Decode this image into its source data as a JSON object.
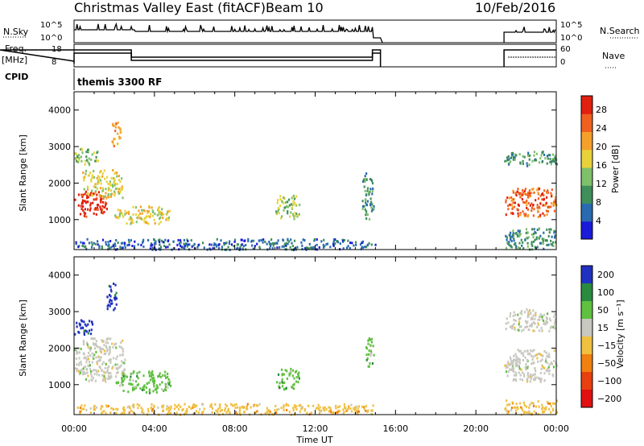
{
  "header": {
    "title": "Christmas Valley East (fitACF)",
    "beam": "Beam 10",
    "date": "10/Feb/2016"
  },
  "strip_labels": {
    "nsky": "N.Sky",
    "freq": "Freq.",
    "mhz": "[MHz]",
    "cpid": "CPID",
    "nsearch": "N.Search",
    "nave": "Nave",
    "nsky_ticks": [
      "10^5",
      "10^0"
    ],
    "nsearch_ticks": [
      "10^5",
      "10^0"
    ],
    "freq_ticks": [
      "18",
      "8"
    ],
    "nave_ticks": [
      "60",
      "0"
    ],
    "cpid_text": "themis 3300 RF"
  },
  "colors": {
    "trace": "#000000",
    "grid_dots": "#000000"
  },
  "chart_data": [
    {
      "type": "heatmap",
      "name": "power",
      "ylabel": "Slant Range [km]",
      "xlim_hours": [
        0,
        24
      ],
      "ylim_km": [
        180,
        4500
      ],
      "yticks": [
        1000,
        2000,
        3000,
        4000
      ],
      "colorbar": {
        "label": "Power [dB]",
        "ticks": [
          4,
          8,
          12,
          16,
          20,
          24,
          28
        ],
        "range": [
          0,
          31
        ],
        "colors": [
          "#1a1ad9",
          "#2a6ab0",
          "#3f8f5a",
          "#7fc06a",
          "#e8d23a",
          "#f5a02a",
          "#f06020",
          "#e02010"
        ]
      },
      "blobs": [
        {
          "t0": 0.0,
          "t1": 1.6,
          "r0": 1100,
          "r1": 1800,
          "level": 28
        },
        {
          "t0": 0.4,
          "t1": 2.4,
          "r0": 1600,
          "r1": 2400,
          "level": 16
        },
        {
          "t0": 0.0,
          "t1": 1.2,
          "r0": 2500,
          "r1": 3000,
          "level": 14
        },
        {
          "t0": 1.8,
          "t1": 2.3,
          "r0": 3000,
          "r1": 3700,
          "level": 20
        },
        {
          "t0": 2.0,
          "t1": 4.8,
          "r0": 900,
          "r1": 1400,
          "level": 16
        },
        {
          "t0": 10.0,
          "t1": 11.2,
          "r0": 1000,
          "r1": 1700,
          "level": 12
        },
        {
          "t0": 14.3,
          "t1": 14.9,
          "r0": 1000,
          "r1": 2300,
          "level": 10
        },
        {
          "t0": 0.0,
          "t1": 15.0,
          "r0": 200,
          "r1": 500,
          "level": 6
        },
        {
          "t0": 21.4,
          "t1": 24.0,
          "r0": 1100,
          "r1": 1900,
          "level": 24
        },
        {
          "t0": 21.4,
          "t1": 24.0,
          "r0": 2500,
          "r1": 2900,
          "level": 8
        },
        {
          "t0": 21.4,
          "t1": 24.0,
          "r0": 200,
          "r1": 800,
          "level": 10
        }
      ]
    },
    {
      "type": "heatmap",
      "name": "velocity",
      "ylabel": "Slant Range [km]",
      "xlabel": "Time UT",
      "xlim_hours": [
        0,
        24
      ],
      "ylim_km": [
        180,
        4500
      ],
      "yticks": [
        1000,
        2000,
        3000,
        4000
      ],
      "xtick_labels": [
        "00:00",
        "04:00",
        "08:00",
        "12:00",
        "16:00",
        "20:00",
        "00:00"
      ],
      "colorbar": {
        "label": "Velocity [m s⁻¹]",
        "ticks": [
          "200",
          "100",
          "50",
          "15",
          "−15",
          "−50",
          "−100",
          "−200"
        ],
        "colors": [
          "#2030c0",
          "#2a8a40",
          "#60c040",
          "#c8c8c0",
          "#f0c040",
          "#f08010",
          "#e84010",
          "#e01010"
        ]
      },
      "blobs": [
        {
          "t0": 0.0,
          "t1": 2.5,
          "r0": 1100,
          "r1": 2300,
          "class": "gray"
        },
        {
          "t0": 1.6,
          "t1": 2.1,
          "r0": 3000,
          "r1": 3800,
          "class": "blue"
        },
        {
          "t0": 0.0,
          "t1": 1.0,
          "r0": 2400,
          "r1": 2800,
          "class": "blue"
        },
        {
          "t0": 2.0,
          "t1": 4.8,
          "r0": 800,
          "r1": 1400,
          "class": "green"
        },
        {
          "t0": 10.0,
          "t1": 11.2,
          "r0": 900,
          "r1": 1500,
          "class": "green"
        },
        {
          "t0": 14.5,
          "t1": 14.9,
          "r0": 1500,
          "r1": 2300,
          "class": "green"
        },
        {
          "t0": 0.0,
          "t1": 15.0,
          "r0": 200,
          "r1": 500,
          "class": "orange"
        },
        {
          "t0": 21.4,
          "t1": 24.0,
          "r0": 1100,
          "r1": 2000,
          "class": "gray"
        },
        {
          "t0": 21.4,
          "t1": 24.0,
          "r0": 2500,
          "r1": 3100,
          "class": "gray"
        },
        {
          "t0": 21.4,
          "t1": 24.0,
          "r0": 200,
          "r1": 600,
          "class": "orange"
        }
      ]
    }
  ]
}
